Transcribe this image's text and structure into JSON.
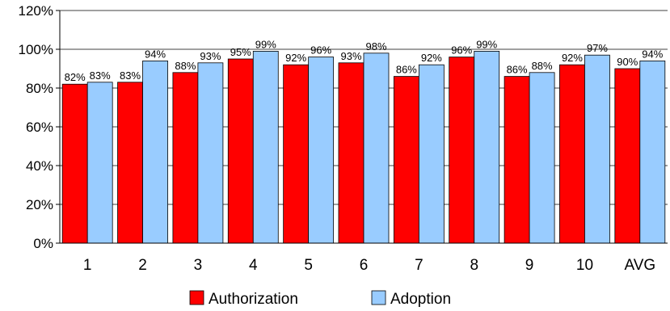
{
  "chart_data": {
    "type": "bar",
    "categories": [
      "1",
      "2",
      "3",
      "4",
      "5",
      "6",
      "7",
      "8",
      "9",
      "10",
      "AVG"
    ],
    "series": [
      {
        "name": "Authorization",
        "color": "#ff0000",
        "values": [
          82,
          83,
          88,
          95,
          92,
          93,
          86,
          96,
          86,
          92,
          90
        ],
        "labels": [
          "82%",
          "83%",
          "88%",
          "95%",
          "92%",
          "93%",
          "86%",
          "96%",
          "86%",
          "92%",
          "90%"
        ]
      },
      {
        "name": "Adoption",
        "color": "#99ccff",
        "values": [
          83,
          94,
          93,
          99,
          96,
          98,
          92,
          99,
          88,
          97,
          94
        ],
        "labels": [
          "83%",
          "94%",
          "93%",
          "99%",
          "96%",
          "98%",
          "92%",
          "99%",
          "88%",
          "97%",
          "94%"
        ]
      }
    ],
    "ylim": [
      0,
      120
    ],
    "yticks": [
      "0%",
      "20%",
      "40%",
      "60%",
      "80%",
      "100%",
      "120%"
    ],
    "ytick_values": [
      0,
      20,
      40,
      60,
      80,
      100,
      120
    ],
    "grid": true,
    "legend_position": "bottom",
    "title": "",
    "xlabel": "",
    "ylabel": ""
  }
}
